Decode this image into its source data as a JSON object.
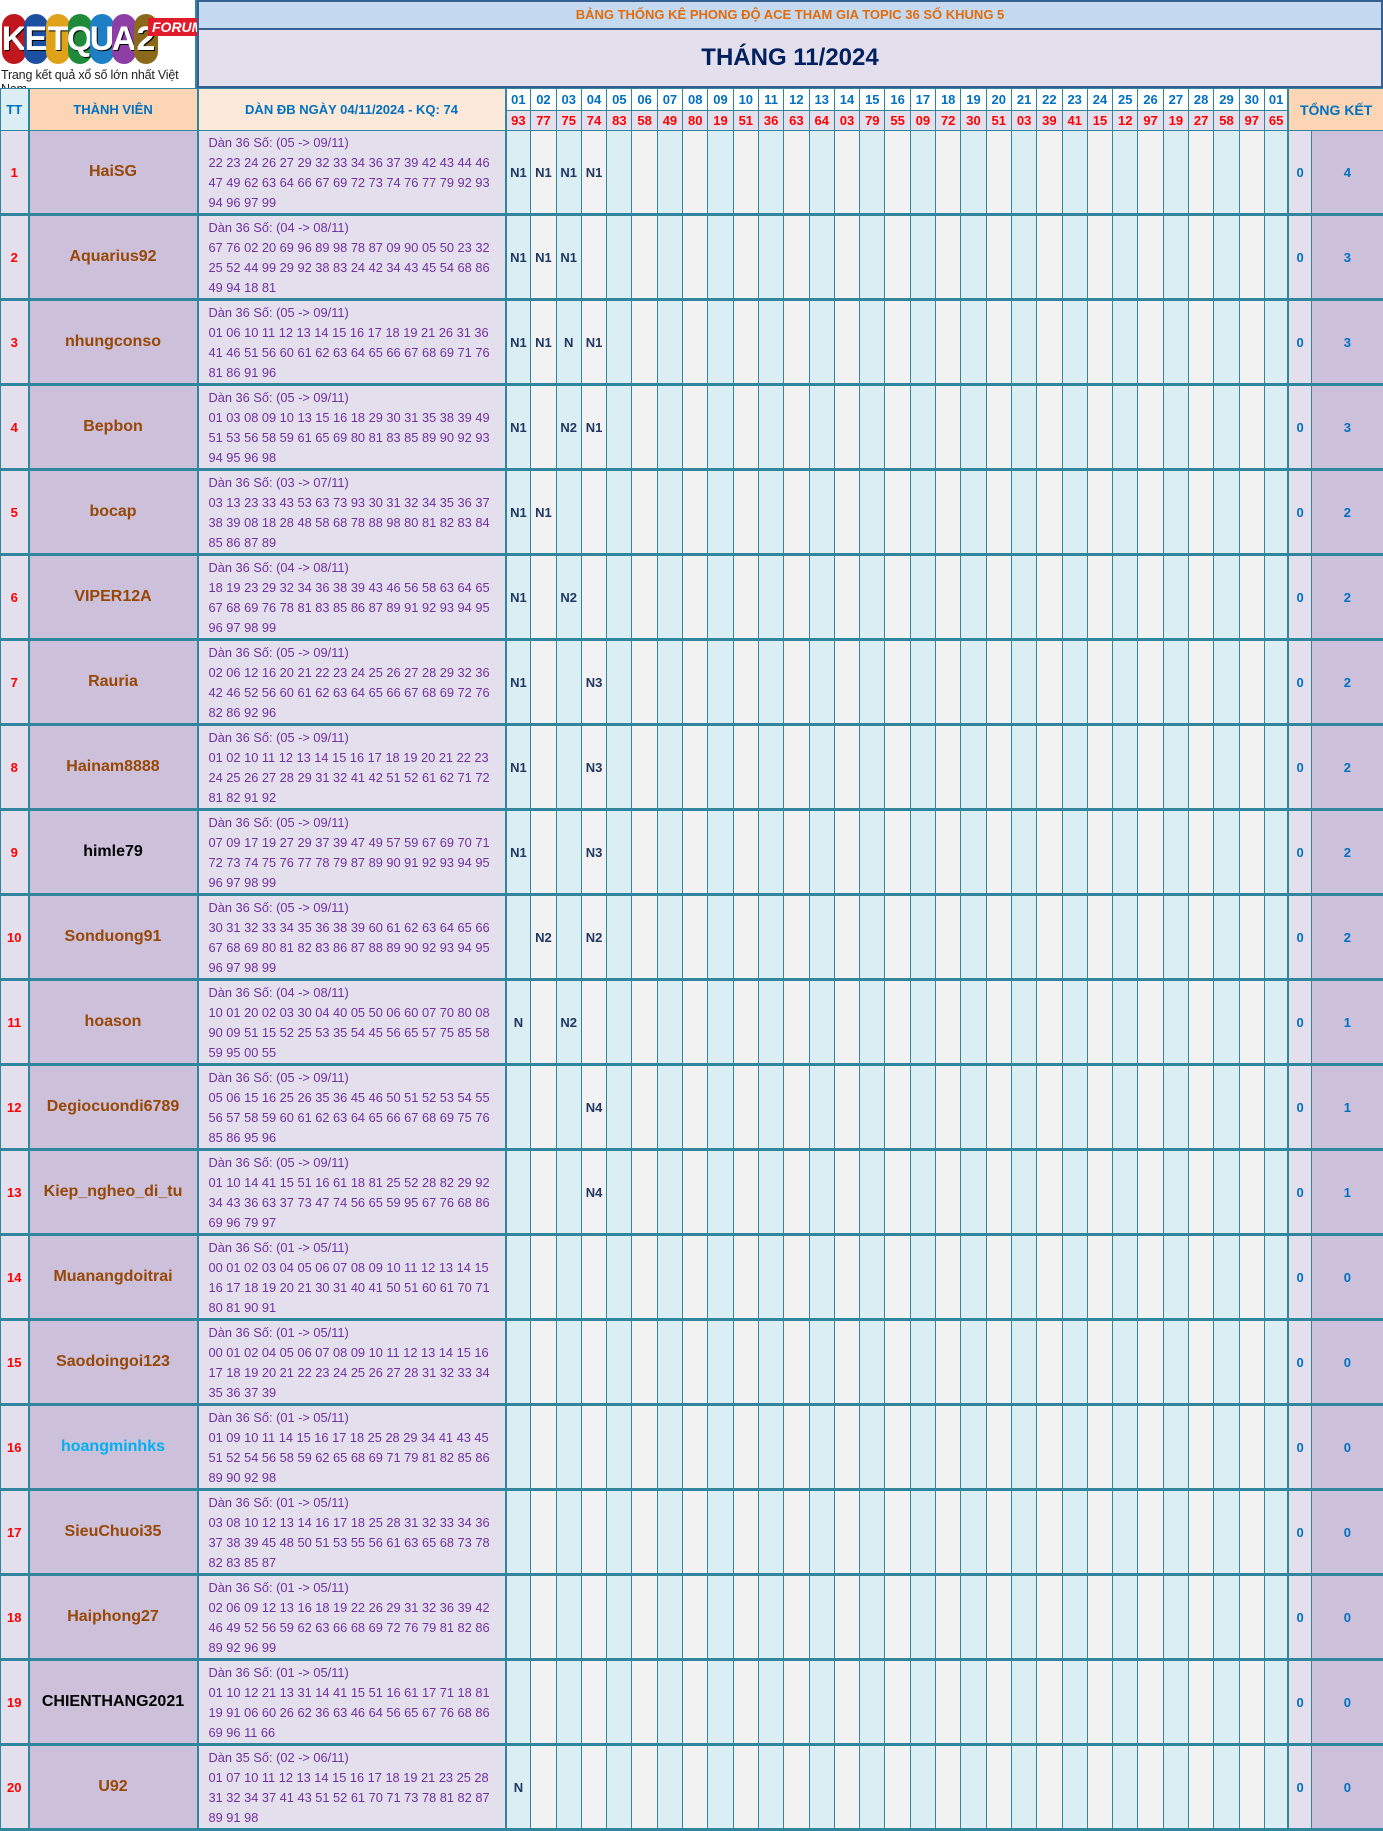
{
  "logo": {
    "letters": "KETQUA2",
    "badge": "FORUM",
    "tagline": "Trang kết quả xổ số lớn nhất Việt Nam"
  },
  "title": "BẢNG THỐNG KÊ PHONG ĐỘ ACE THAM GIA TOPIC 36 SỐ KHUNG 5",
  "month": "THÁNG 11/2024",
  "headers": {
    "tt": "TT",
    "member": "THÀNH VIÊN",
    "dan": "DÀN ĐB NGÀY 04/11/2024 - KQ: 74",
    "total": "TỔNG KẾT"
  },
  "days": [
    "01",
    "02",
    "03",
    "04",
    "05",
    "06",
    "07",
    "08",
    "09",
    "10",
    "11",
    "12",
    "13",
    "14",
    "15",
    "16",
    "17",
    "18",
    "19",
    "20",
    "21",
    "22",
    "23",
    "24",
    "25",
    "26",
    "27",
    "28",
    "29",
    "30",
    "01"
  ],
  "results": [
    "93",
    "77",
    "75",
    "74",
    "83",
    "58",
    "49",
    "80",
    "19",
    "51",
    "36",
    "63",
    "64",
    "03",
    "79",
    "55",
    "09",
    "72",
    "30",
    "51",
    "03",
    "39",
    "41",
    "15",
    "12",
    "97",
    "19",
    "27",
    "58",
    "97",
    "65"
  ],
  "colors": {
    "border": "#31859c",
    "name": "#974706",
    "dan": "#7030a0",
    "result": "#ff0000"
  },
  "rows": [
    {
      "tt": "1",
      "name": "HaiSG",
      "color": "#974706",
      "title": "Dàn 36 Số: (05 -> 09/11)",
      "nums": "22 23 24 26 27 29 32 33 34 36 37 39 42 43 44 46 47 49 62 63 64 66 67 69 72 73 74 76 77 79 92 93 94 96 97 99",
      "marks": [
        "N1",
        "N1",
        "N1",
        "N1"
      ],
      "t0": "0",
      "t1": "4"
    },
    {
      "tt": "2",
      "name": "Aquarius92",
      "color": "#974706",
      "title": "Dàn 36 Số: (04 -> 08/11)",
      "nums": "67 76 02 20 69 96 89 98 78 87 09 90 05 50 23 32 25 52 44 99 29 92 38 83 24 42 34 43 45 54 68 86 49 94 18 81",
      "marks": [
        "N1",
        "N1",
        "N1"
      ],
      "t0": "0",
      "t1": "3"
    },
    {
      "tt": "3",
      "name": "nhungconso",
      "color": "#974706",
      "title": "Dàn 36 Số: (05 -> 09/11)",
      "nums": "01 06 10 11 12 13 14 15 16 17 18 19 21 26 31 36 41 46 51 56 60 61 62 63 64 65 66 67 68 69 71 76 81 86 91 96",
      "marks": [
        "N1",
        "N1",
        "N",
        "N1"
      ],
      "t0": "0",
      "t1": "3"
    },
    {
      "tt": "4",
      "name": "Bepbon",
      "color": "#974706",
      "title": "Dàn 36 Số: (05 -> 09/11)",
      "nums": "01 03 08 09 10 13 15 16 18 29 30 31 35 38 39 49 51 53 56 58 59 61 65 69 80 81 83 85 89 90 92 93 94 95 96 98",
      "marks": [
        "N1",
        "",
        "N2",
        "N1"
      ],
      "t0": "0",
      "t1": "3"
    },
    {
      "tt": "5",
      "name": "bocap",
      "color": "#974706",
      "title": "Dàn 36 Số: (03 -> 07/11)",
      "nums": "03 13 23 33 43 53 63 73 93 30 31 32 34 35 36 37 38 39 08 18 28 48 58 68 78 88 98 80 81 82 83 84 85 86 87 89",
      "marks": [
        "N1",
        "N1"
      ],
      "t0": "0",
      "t1": "2"
    },
    {
      "tt": "6",
      "name": "VIPER12A",
      "color": "#974706",
      "title": "Dàn 36 Số: (04 -> 08/11)",
      "nums": "18 19 23 29 32 34 36 38 39 43 46 56 58 63 64 65 67 68 69 76 78 81 83 85 86 87 89 91 92 93 94 95 96 97 98 99",
      "marks": [
        "N1",
        "",
        "N2"
      ],
      "t0": "0",
      "t1": "2"
    },
    {
      "tt": "7",
      "name": "Rauria",
      "color": "#974706",
      "title": "Dàn 36 Số: (05 -> 09/11)",
      "nums": "02 06 12 16 20 21 22 23 24 25 26 27 28 29 32 36 42 46 52 56 60 61 62 63 64 65 66 67 68 69 72 76 82 86 92 96",
      "marks": [
        "N1",
        "",
        "",
        "N3"
      ],
      "t0": "0",
      "t1": "2"
    },
    {
      "tt": "8",
      "name": "Hainam8888",
      "color": "#974706",
      "title": "Dàn 36 Số: (05 -> 09/11)",
      "nums": "01 02 10 11 12 13 14 15 16 17 18 19 20 21 22 23 24 25 26 27 28 29 31 32 41 42 51 52 61 62 71 72 81 82 91 92",
      "marks": [
        "N1",
        "",
        "",
        "N3"
      ],
      "t0": "0",
      "t1": "2"
    },
    {
      "tt": "9",
      "name": "himle79",
      "color": "#000000",
      "title": "Dàn 36 Số: (05 -> 09/11)",
      "nums": "07 09 17 19 27 29 37 39 47 49 57 59 67 69 70 71 72 73 74 75 76 77 78 79 87 89 90 91 92 93 94 95 96 97 98 99",
      "marks": [
        "N1",
        "",
        "",
        "N3"
      ],
      "t0": "0",
      "t1": "2"
    },
    {
      "tt": "10",
      "name": "Sonduong91",
      "color": "#974706",
      "title": "Dàn 36 Số: (05 -> 09/11)",
      "nums": "30 31 32 33 34 35 36 38 39 60 61 62 63 64 65 66 67 68 69 80 81 82 83 86 87 88 89 90 92 93 94 95 96 97 98 99",
      "marks": [
        "",
        "N2",
        "",
        "N2"
      ],
      "t0": "0",
      "t1": "2"
    },
    {
      "tt": "11",
      "name": "hoason",
      "color": "#974706",
      "title": "Dàn 36 Số: (04 -> 08/11)",
      "nums": "10 01 20 02 03 30 04 40 05 50 06 60 07 70 80 08 90 09 51 15 52 25 53 35 54 45 56 65 57 75 85 58 59 95 00 55",
      "marks": [
        "N",
        "",
        "N2"
      ],
      "t0": "0",
      "t1": "1"
    },
    {
      "tt": "12",
      "name": "Degiocuondi6789",
      "color": "#974706",
      "title": "Dàn 36 Số: (05 -> 09/11)",
      "nums": "05 06 15 16 25 26 35 36 45 46 50 51 52 53 54 55 56 57 58 59 60 61 62 63 64 65 66 67 68 69 75 76 85 86 95 96",
      "marks": [
        "",
        "",
        "",
        "N4"
      ],
      "t0": "0",
      "t1": "1"
    },
    {
      "tt": "13",
      "name": "Kiep_ngheo_di_tu",
      "color": "#974706",
      "title": "Dàn 36 Số: (05 -> 09/11)",
      "nums": "01 10 14 41 15 51 16 61 18 81 25 52 28 82 29 92 34 43 36 63 37 73 47 74 56 65 59 95 67 76 68 86 69 96 79 97",
      "marks": [
        "",
        "",
        "",
        "N4"
      ],
      "t0": "0",
      "t1": "1"
    },
    {
      "tt": "14",
      "name": "Muanangdoitrai",
      "color": "#974706",
      "title": "Dàn 36 Số: (01 -> 05/11)",
      "nums": "00 01 02 03 04 05 06 07 08 09 10 11 12 13 14 15 16 17 18 19 20 21 30 31 40 41 50 51 60 61 70 71 80 81 90 91",
      "marks": [],
      "t0": "0",
      "t1": "0"
    },
    {
      "tt": "15",
      "name": "Saodoingoi123",
      "color": "#974706",
      "title": "Dàn 36 Số: (01 -> 05/11)",
      "nums": "00 01 02 04 05 06 07 08 09 10 11 12 13 14 15 16 17 18 19 20 21 22 23 24 25 26 27 28 31 32 33 34 35 36 37 39",
      "marks": [],
      "t0": "0",
      "t1": "0"
    },
    {
      "tt": "16",
      "name": "hoangminhks",
      "color": "#00b0f0",
      "title": "Dàn 36 Số: (01 -> 05/11)",
      "nums": "01 09 10 11 14 15 16 17 18 25 28 29 34 41 43 45 51 52 54 56 58 59 62 65 68 69 71 79 81 82 85 86 89 90 92 98",
      "marks": [],
      "t0": "0",
      "t1": "0"
    },
    {
      "tt": "17",
      "name": "SieuChuoi35",
      "color": "#974706",
      "title": "Dàn 36 Số: (01 -> 05/11)",
      "nums": "03 08 10 12 13 14 16 17 18 25 28 31 32 33 34 36 37 38 39 45 48 50 51 53 55 56 61 63 65 68 73 78 82 83 85 87",
      "marks": [],
      "t0": "0",
      "t1": "0"
    },
    {
      "tt": "18",
      "name": "Haiphong27",
      "color": "#974706",
      "title": "Dàn 36 Số: (01 -> 05/11)",
      "nums": "02 06 09 12 13 16 18 19 22 26 29 31 32 36 39 42 46 49 52 56 59 62 63 66 68 69 72 76 79 81 82 86 89 92 96 99",
      "marks": [],
      "t0": "0",
      "t1": "0"
    },
    {
      "tt": "19",
      "name": "CHIENTHANG2021",
      "color": "#000000",
      "title": "Dàn 36 Số: (01 -> 05/11)",
      "nums": "01 10 12 21 13 31 14 41 15 51 16 61 17 71 18 81 19 91 06 60 26 62 36 63 46 64 56 65 67 76 68 86 69 96 11 66",
      "marks": [],
      "t0": "0",
      "t1": "0"
    },
    {
      "tt": "20",
      "name": "U92",
      "color": "#974706",
      "title": "Dàn 35 Số: (02 -> 06/11)",
      "nums": "01 07 10 11 12 13 14 15 16 17 18 19 21 23 25 28 31 32 34 37 41 43 51 52 61 70 71 73 78 81 82 87 89 91 98",
      "marks": [
        "N"
      ],
      "t0": "0",
      "t1": "0"
    }
  ]
}
